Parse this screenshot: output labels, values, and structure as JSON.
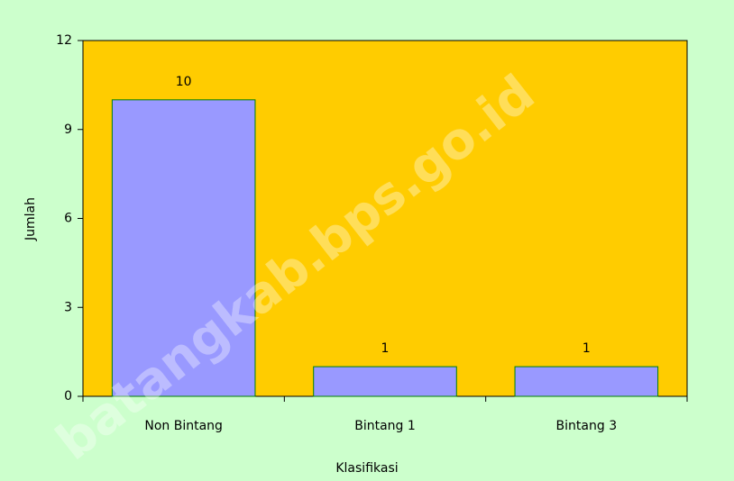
{
  "chart_data": {
    "type": "bar",
    "categories": [
      "Non Bintang",
      "Bintang 1",
      "Bintang 3"
    ],
    "values": [
      10,
      1,
      1
    ],
    "color": "#9999ff",
    "edge_color": "#008000",
    "plot_background": "#ffcc00",
    "background": "#ccffcc",
    "x_label": "Klasifikasi",
    "y_label": "Jumlah",
    "ylim": [
      0,
      12
    ],
    "yticks": [
      0,
      3,
      6,
      9,
      12
    ],
    "watermark": "batangkab.bps.go.id"
  }
}
